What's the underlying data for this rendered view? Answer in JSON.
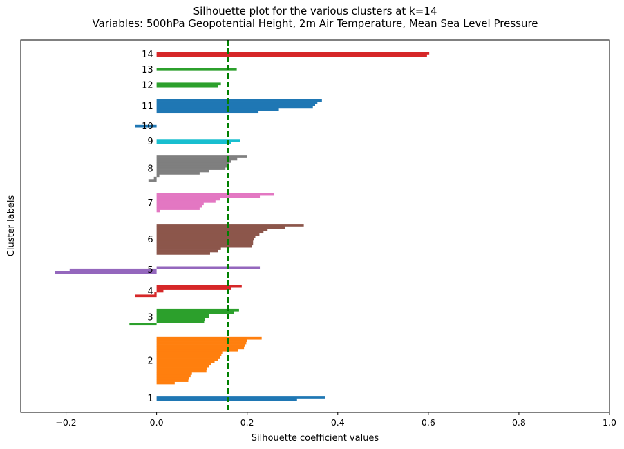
{
  "chart_data": {
    "type": "bar",
    "orientation": "horizontal",
    "title": "Silhouette plot for the various clusters at k=14",
    "subtitle": "Variables: 500hPa Geopotential Height, 2m Air Temperature, Mean Sea Level Pressure",
    "xlabel": "Silhouette coefficient values",
    "ylabel": "Cluster labels",
    "xlim": [
      -0.3,
      1.0
    ],
    "xticks": [
      -0.2,
      0.0,
      0.2,
      0.4,
      0.6,
      0.8,
      1.0
    ],
    "xtick_labels": [
      "−0.2",
      "0.0",
      "0.2",
      "0.4",
      "0.6",
      "0.8",
      "1.0"
    ],
    "average_silhouette": 0.158,
    "average_line_color": "#008000",
    "grid": false,
    "clusters": [
      {
        "label": "1",
        "color": "#1f77b4",
        "values": [
          0.31,
          0.372
        ]
      },
      {
        "label": "2",
        "color": "#ff7f0e",
        "values": [
          0.04,
          0.07,
          0.072,
          0.075,
          0.078,
          0.11,
          0.112,
          0.115,
          0.12,
          0.128,
          0.135,
          0.14,
          0.143,
          0.145,
          0.18,
          0.193,
          0.195,
          0.198,
          0.2,
          0.232
        ]
      },
      {
        "label": "3",
        "color": "#2ca02c",
        "values": [
          -0.06,
          0.105,
          0.106,
          0.115,
          0.116,
          0.17,
          0.182
        ]
      },
      {
        "label": "4",
        "color": "#d62728",
        "values": [
          -0.047,
          -0.005,
          0.015,
          0.165,
          0.188
        ]
      },
      {
        "label": "5",
        "color": "#9467bd",
        "values": [
          -0.225,
          -0.192,
          0.228
        ]
      },
      {
        "label": "6",
        "color": "#8c564b",
        "values": [
          0.118,
          0.135,
          0.142,
          0.21,
          0.213,
          0.213,
          0.215,
          0.218,
          0.227,
          0.236,
          0.245,
          0.283,
          0.325
        ]
      },
      {
        "label": "7",
        "color": "#e377c2",
        "values": [
          0.007,
          0.095,
          0.1,
          0.104,
          0.13,
          0.14,
          0.228,
          0.26
        ]
      },
      {
        "label": "8",
        "color": "#7f7f7f",
        "values": [
          -0.018,
          -0.006,
          0.006,
          0.095,
          0.115,
          0.152,
          0.155,
          0.16,
          0.165,
          0.178,
          0.2
        ]
      },
      {
        "label": "9",
        "color": "#17becf",
        "values": [
          0.165,
          0.185
        ]
      },
      {
        "label": "10",
        "color": "#1f77b4",
        "values": [
          -0.047
        ]
      },
      {
        "label": "11",
        "color": "#1f77b4",
        "values": [
          0.225,
          0.27,
          0.345,
          0.35,
          0.355,
          0.365
        ]
      },
      {
        "label": "12",
        "color": "#2ca02c",
        "values": [
          0.135,
          0.142
        ]
      },
      {
        "label": "13",
        "color": "#2ca02c",
        "values": [
          0.177
        ]
      },
      {
        "label": "14",
        "color": "#d62728",
        "values": [
          0.597,
          0.602
        ]
      }
    ]
  }
}
